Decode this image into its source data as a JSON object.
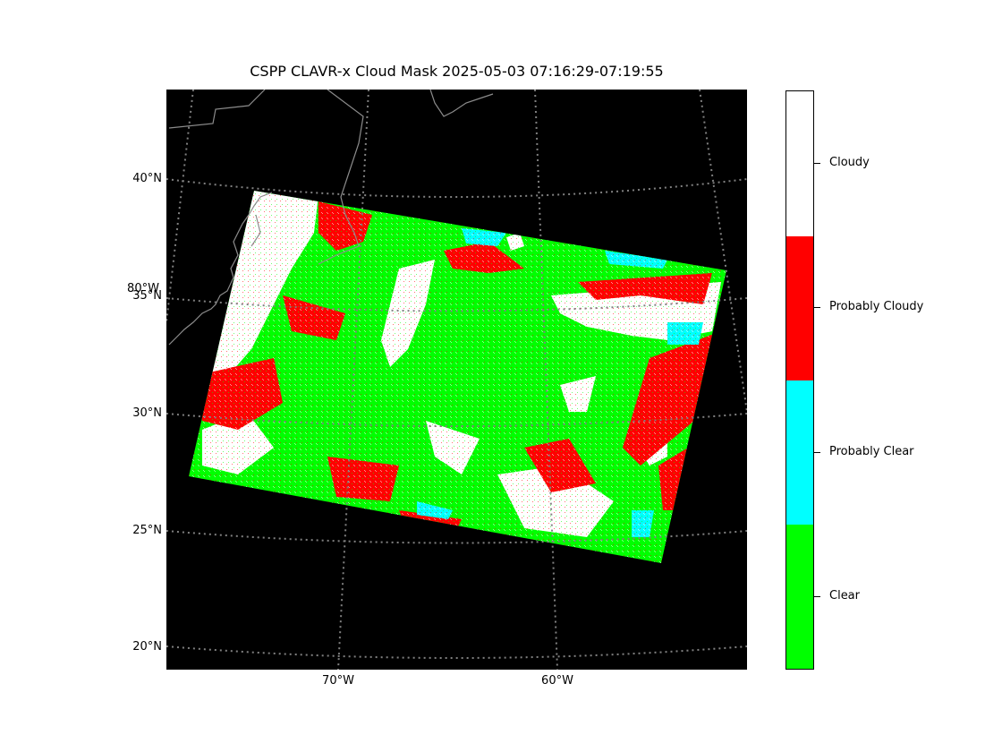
{
  "title": "CSPP CLAVR-x Cloud Mask 2025-05-03 07:16:29-07:19:55",
  "colors": {
    "background": "#000000",
    "grid": "#808080",
    "coast": "#8c8c8c",
    "clear": "#00ff00",
    "probably_clear": "#00ffff",
    "probably_cloudy": "#ff0000",
    "cloudy": "#ffffff"
  },
  "map": {
    "projection": "stereographic",
    "latitude_labels": [
      "40°N",
      "35°N",
      "30°N",
      "25°N",
      "20°N"
    ],
    "longitude_labels": [
      "80°W",
      "70°W",
      "60°W"
    ]
  },
  "legend": {
    "entries": [
      {
        "label": "Cloudy",
        "color": "#ffffff"
      },
      {
        "label": "Probably Cloudy",
        "color": "#ff0000"
      },
      {
        "label": "Probably Clear",
        "color": "#00ffff"
      },
      {
        "label": "Clear",
        "color": "#00ff00"
      }
    ]
  }
}
